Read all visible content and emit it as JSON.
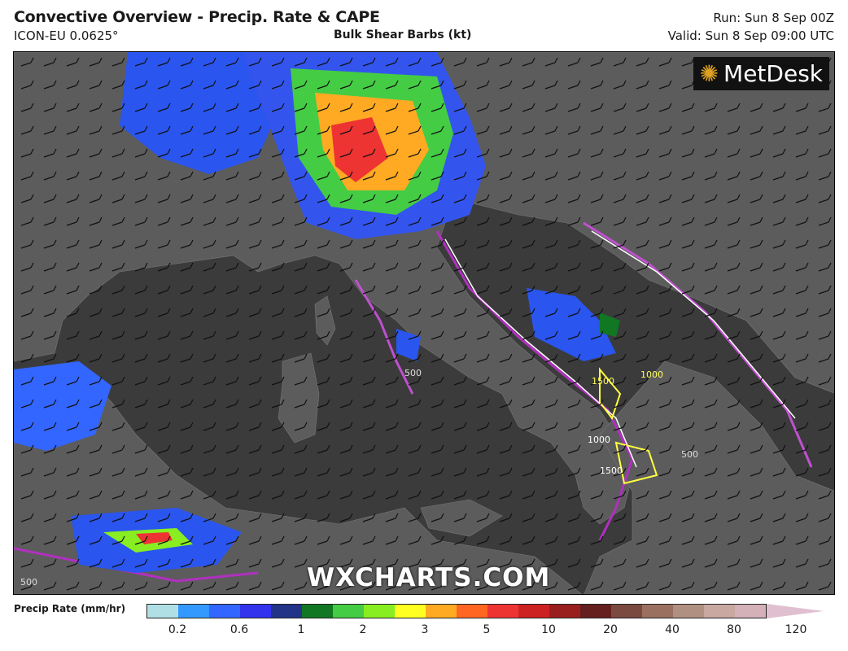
{
  "header": {
    "title": "Convective Overview - Precip. Rate & CAPE",
    "model": "ICON-EU 0.0625°",
    "subtitle": "Bulk Shear Barbs (kt)",
    "run": "Run: Sun 8 Sep 00Z",
    "valid": "Valid: Sun 8 Sep 09:00 UTC"
  },
  "map": {
    "logo": "MetDesk",
    "watermark": "WXCHARTS.COM",
    "cape_labels": [
      "1500",
      "1000",
      "1500",
      "1000",
      "500",
      "500",
      "500"
    ],
    "colors": {
      "sea": "#3b3b3b",
      "land": "#5c5c5c",
      "cape_contour": "#b030c0",
      "cape_high": "#ffff40"
    }
  },
  "legend": {
    "label": "Precip Rate (mm/hr)",
    "ticks": [
      "0.2",
      "0.6",
      "1",
      "2",
      "3",
      "5",
      "10",
      "20",
      "40",
      "80",
      "120"
    ],
    "colors": [
      "#b0e0e6",
      "#3399ff",
      "#3366ff",
      "#3333ee",
      "#223388",
      "#117722",
      "#44cc44",
      "#88ee22",
      "#ffff22",
      "#ffaa22",
      "#ff6622",
      "#ee3333",
      "#cc2222",
      "#991f1f",
      "#661f1f",
      "#7a4a40",
      "#9a7060",
      "#b09080",
      "#c8a8a0",
      "#d4b0b8"
    ]
  }
}
